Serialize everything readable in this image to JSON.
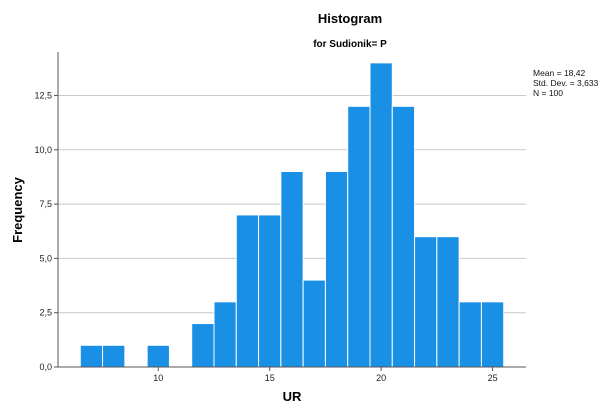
{
  "chart_data": {
    "type": "bar",
    "title": "Histogram",
    "subtitle": "for Sudionik= P",
    "xlabel": "UR",
    "ylabel": "Frequency",
    "xlim": [
      5.5,
      26.5
    ],
    "ylim": [
      0,
      14.5
    ],
    "xticks": [
      10,
      15,
      20,
      25
    ],
    "xtick_labels": [
      "10",
      "15",
      "20",
      "25"
    ],
    "yticks": [
      0,
      2.5,
      5,
      7.5,
      10,
      12.5
    ],
    "ytick_labels": [
      "0,0",
      "2,5",
      "5,0",
      "7,5",
      "10,0",
      "12,5"
    ],
    "grid": "horizontal",
    "bin_width": 1,
    "bins": [
      {
        "x": 7,
        "value": 1
      },
      {
        "x": 8,
        "value": 1
      },
      {
        "x": 10,
        "value": 1
      },
      {
        "x": 12,
        "value": 2
      },
      {
        "x": 13,
        "value": 3
      },
      {
        "x": 14,
        "value": 7
      },
      {
        "x": 15,
        "value": 7
      },
      {
        "x": 16,
        "value": 9
      },
      {
        "x": 17,
        "value": 4
      },
      {
        "x": 18,
        "value": 9
      },
      {
        "x": 19,
        "value": 12
      },
      {
        "x": 20,
        "value": 14
      },
      {
        "x": 21,
        "value": 12
      },
      {
        "x": 22,
        "value": 6
      },
      {
        "x": 23,
        "value": 6
      },
      {
        "x": 24,
        "value": 3
      },
      {
        "x": 25,
        "value": 3
      }
    ],
    "bar_color": "#1a8fe6",
    "bar_edge_color": "#ffffff",
    "stats": {
      "mean": "Mean = 18,42",
      "std": "Std. Dev. = 3,633",
      "n": "N = 100"
    }
  }
}
